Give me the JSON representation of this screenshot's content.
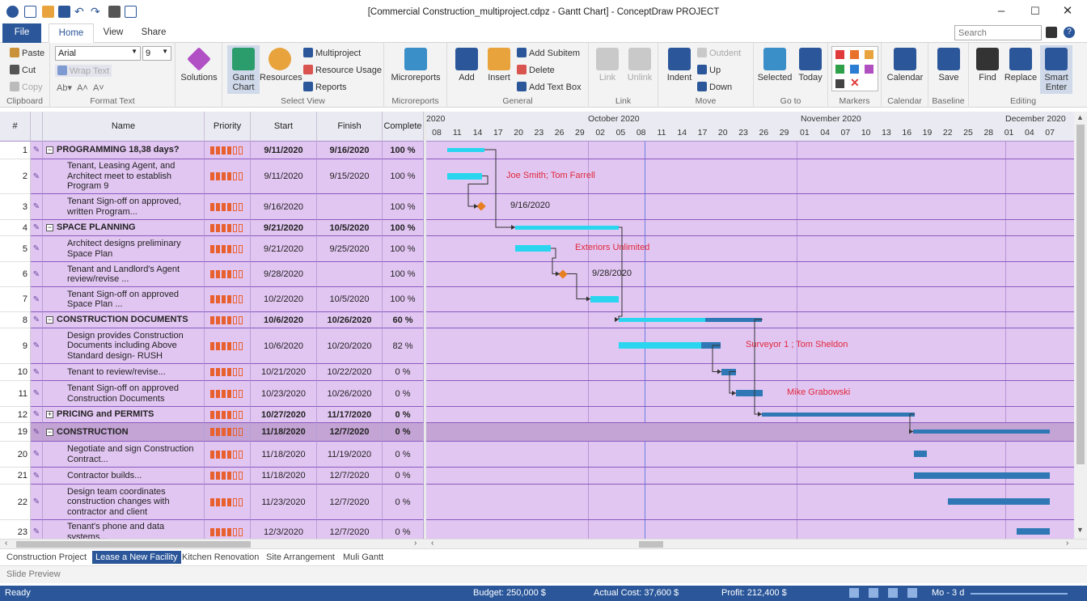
{
  "window": {
    "title": "[Commercial Construction_multiproject.cdpz - Gantt Chart] - ConceptDraw PROJECT"
  },
  "tabs": {
    "file": "File",
    "home": "Home",
    "view": "View",
    "share": "Share"
  },
  "search": {
    "placeholder": "Search"
  },
  "ribbon": {
    "clipboard": {
      "label": "Clipboard",
      "paste": "Paste",
      "cut": "Cut",
      "copy": "Copy"
    },
    "format_text": {
      "label": "Format Text",
      "font": "Arial",
      "size": "9",
      "wrap": "Wrap Text"
    },
    "solutions": "Solutions",
    "select_view": {
      "label": "Select View",
      "gantt": "Gantt\nChart",
      "resources": "Resources",
      "multiproject": "Multiproject",
      "resource_usage": "Resource Usage",
      "reports": "Reports"
    },
    "microreports": {
      "label": "Microreports",
      "button": "Microreports"
    },
    "general": {
      "label": "General",
      "add": "Add",
      "insert": "Insert",
      "add_subitem": "Add Subitem",
      "delete": "Delete",
      "add_text_box": "Add Text Box"
    },
    "link": {
      "label": "Link",
      "link": "Link",
      "unlink": "Unlink"
    },
    "move": {
      "label": "Move",
      "indent": "Indent",
      "outdent": "Outdent",
      "up": "Up",
      "down": "Down"
    },
    "goto": {
      "label": "Go to",
      "selected": "Selected",
      "today": "Today"
    },
    "markers": {
      "label": "Markers"
    },
    "calendar": {
      "label": "Calendar",
      "button": "Calendar"
    },
    "baseline": {
      "label": "Baseline",
      "save": "Save"
    },
    "editing": {
      "label": "Editing",
      "find": "Find",
      "replace": "Replace",
      "smart": "Smart\nEnter"
    }
  },
  "columns": {
    "num": "#",
    "name": "Name",
    "priority": "Priority",
    "start": "Start",
    "finish": "Finish",
    "complete": "Complete"
  },
  "tasks": [
    {
      "num": "1",
      "name": "PROGRAMMING 18,38 days?",
      "summary": true,
      "toggle": "⊟",
      "priority": 4,
      "start": "9/11/2020",
      "finish": "9/16/2020",
      "complete": "100 %"
    },
    {
      "num": "2",
      "name": "Tenant, Leasing Agent, and Architect meet to establish Program 9",
      "priority": 4,
      "start": "9/11/2020",
      "finish": "9/15/2020",
      "complete": "100 %"
    },
    {
      "num": "3",
      "name": "Tenant Sign-off on approved, written Program...",
      "priority": 4,
      "start": "9/16/2020",
      "finish": "",
      "complete": "100 %"
    },
    {
      "num": "4",
      "name": "SPACE PLANNING",
      "summary": true,
      "toggle": "⊟",
      "priority": 4,
      "start": "9/21/2020",
      "finish": "10/5/2020",
      "complete": "100 %"
    },
    {
      "num": "5",
      "name": "Architect designs preliminary Space Plan",
      "priority": 4,
      "start": "9/21/2020",
      "finish": "9/25/2020",
      "complete": "100 %"
    },
    {
      "num": "6",
      "name": "Tenant and Landlord's Agent review/revise ...",
      "priority": 4,
      "start": "9/28/2020",
      "finish": "",
      "complete": "100 %"
    },
    {
      "num": "7",
      "name": "Tenant Sign-off on approved Space Plan ...",
      "priority": 4,
      "start": "10/2/2020",
      "finish": "10/5/2020",
      "complete": "100 %"
    },
    {
      "num": "8",
      "name": "CONSTRUCTION DOCUMENTS",
      "summary": true,
      "toggle": "⊟",
      "priority": 4,
      "start": "10/6/2020",
      "finish": "10/26/2020",
      "complete": "60 %"
    },
    {
      "num": "9",
      "name": "Design provides Construction Documents including Above Standard design- RUSH",
      "priority": 4,
      "start": "10/6/2020",
      "finish": "10/20/2020",
      "complete": "82 %"
    },
    {
      "num": "10",
      "name": "Tenant to review/revise...",
      "priority": 4,
      "start": "10/21/2020",
      "finish": "10/22/2020",
      "complete": "0 %"
    },
    {
      "num": "11",
      "name": "Tenant Sign-off on approved Construction Documents",
      "priority": 4,
      "start": "10/23/2020",
      "finish": "10/26/2020",
      "complete": "0 %"
    },
    {
      "num": "12",
      "name": "PRICING and PERMITS",
      "summary": true,
      "toggle": "⊞",
      "priority": 4,
      "start": "10/27/2020",
      "finish": "11/17/2020",
      "complete": "0 %"
    },
    {
      "num": "19",
      "name": "CONSTRUCTION",
      "summary": true,
      "toggle": "⊟",
      "priority": 4,
      "start": "11/18/2020",
      "finish": "12/7/2020",
      "complete": "0 %"
    },
    {
      "num": "20",
      "name": "Negotiate and sign Construction Contract...",
      "priority": 4,
      "start": "11/18/2020",
      "finish": "11/19/2020",
      "complete": "0 %"
    },
    {
      "num": "21",
      "name": "Contractor builds...",
      "priority": 4,
      "start": "11/18/2020",
      "finish": "12/7/2020",
      "complete": "0 %"
    },
    {
      "num": "22",
      "name": "Design team coordinates construction changes with contractor and client",
      "priority": 4,
      "start": "11/23/2020",
      "finish": "12/7/2020",
      "complete": "0 %"
    },
    {
      "num": "23",
      "name": "Tenant's phone and data systems...",
      "priority": 4,
      "start": "12/3/2020",
      "finish": "12/7/2020",
      "complete": "0 %"
    }
  ],
  "timeline": {
    "months": [
      "2020",
      "October 2020",
      "November 2020",
      "December 2020"
    ],
    "days": [
      "08",
      "11",
      "14",
      "17",
      "20",
      "23",
      "26",
      "29",
      "02",
      "05",
      "08",
      "11",
      "14",
      "17",
      "20",
      "23",
      "26",
      "29",
      "01",
      "04",
      "07",
      "10",
      "13",
      "16",
      "19",
      "22",
      "25",
      "28",
      "01",
      "04",
      "07"
    ]
  },
  "chart_labels": {
    "r2": "Joe Smith; Tom Farrell",
    "r3": "9/16/2020",
    "r5": "Exteriors Unlimited",
    "r6": "9/28/2020",
    "r9": "Surveyor 1 ; Tom Sheldon",
    "r11": "Mike Grabowski"
  },
  "sheets": [
    "Construction Project",
    "Lease a New Facility",
    "Kitchen Renovation",
    "Site Arrangement",
    "Muli Gantt"
  ],
  "slide_preview": "Slide Preview",
  "status": {
    "ready": "Ready",
    "budget": "Budget: 250,000 $",
    "actual": "Actual Cost: 37,600 $",
    "profit": "Profit: 212,400 $",
    "zoom": "Mo - 3 d"
  },
  "colors": {
    "accent": "#2b579a",
    "grid_bg": "#e2c6f2",
    "bar_done": "#2ad6ef",
    "bar_todo": "#2f78b5",
    "milestone": "#e67e22",
    "resource_label": "#e0283a"
  }
}
